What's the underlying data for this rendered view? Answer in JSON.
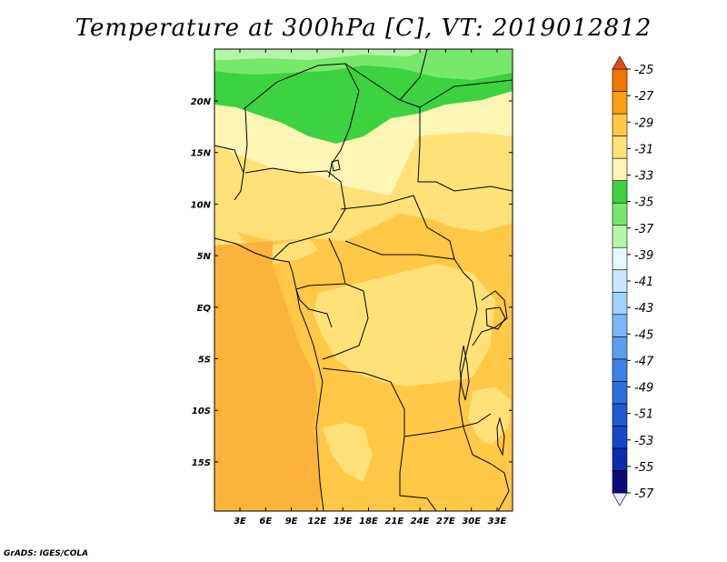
{
  "title": "Temperature at 300hPa [C], VT: 2019012812",
  "credit": "GrADS: IGES/COLA",
  "lat_labels": [
    "20N",
    "15N",
    "10N",
    "5N",
    "EQ",
    "5S",
    "10S",
    "15S"
  ],
  "lon_labels": [
    "3E",
    "6E",
    "9E",
    "12E",
    "15E",
    "18E",
    "21E",
    "24E",
    "27E",
    "30E",
    "33E"
  ],
  "colorbar": {
    "labels": [
      "-25",
      "-27",
      "-29",
      "-31",
      "-33",
      "-35",
      "-37",
      "-39",
      "-41",
      "-43",
      "-45",
      "-47",
      "-49",
      "-51",
      "-53",
      "-55",
      "-57"
    ],
    "colors": [
      "#e8e8ff",
      "#0a0a78",
      "#0a2daa",
      "#1446c8",
      "#1e5ad2",
      "#2d6edc",
      "#3c82e6",
      "#5aa0f0",
      "#78b9f5",
      "#a0d2fa",
      "#c8e6fc",
      "#e6f8ff",
      "#b4f5a8",
      "#78e86c",
      "#3cd241",
      "#fff5b4",
      "#ffe178",
      "#ffc846",
      "#fa9f14",
      "#f07800",
      "#f04614"
    ]
  }
}
